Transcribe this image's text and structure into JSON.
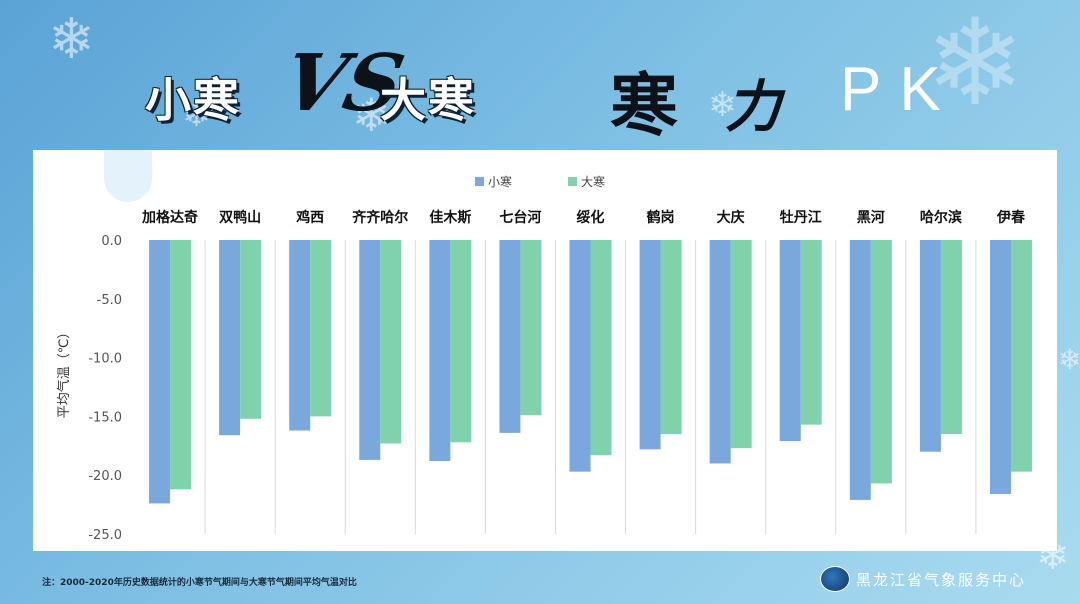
{
  "title": {
    "left": "小寒",
    "vs": "VS",
    "right": "大寒",
    "han": "寒",
    "li": "力",
    "pk": "PK"
  },
  "footnote": "注：2000-2020年历史数据统计的小寒节气期间与大寒节气期间平均气温对比",
  "organization": "黑龙江省气象服务中心",
  "colors": {
    "xiaohan": "#7aa7dc",
    "dahan": "#7fd2ab"
  },
  "chart_data": {
    "type": "bar",
    "title": "",
    "ylabel": "平均气温（℃）",
    "xlabel": "",
    "ylim": [
      -25,
      0
    ],
    "yticks": [
      "0.0",
      "-5.0",
      "-10.0",
      "-15.0",
      "-20.0",
      "-25.0"
    ],
    "legend_position": "top",
    "grid": "vertical category separators",
    "categories": [
      "加格达奇",
      "双鸭山",
      "鸡西",
      "齐齐哈尔",
      "佳木斯",
      "七台河",
      "绥化",
      "鹤岗",
      "大庆",
      "牡丹江",
      "黑河",
      "哈尔滨",
      "伊春"
    ],
    "series": [
      {
        "name": "小寒",
        "values": [
          -22.4,
          -16.6,
          -16.2,
          -18.7,
          -18.8,
          -16.4,
          -19.7,
          -17.8,
          -19.0,
          -17.1,
          -22.1,
          -18.0,
          -21.6
        ]
      },
      {
        "name": "大寒",
        "values": [
          -21.2,
          -15.2,
          -15.0,
          -17.3,
          -17.2,
          -14.9,
          -18.3,
          -16.5,
          -17.7,
          -15.7,
          -20.7,
          -16.5,
          -19.7
        ]
      }
    ]
  }
}
